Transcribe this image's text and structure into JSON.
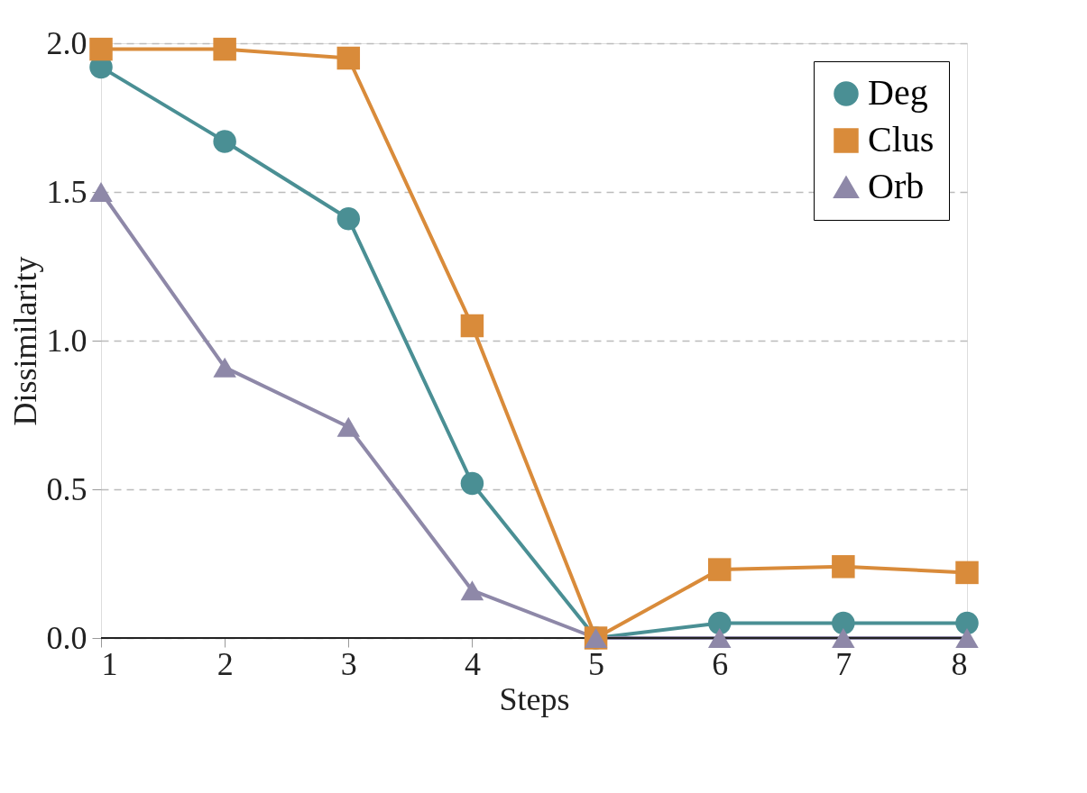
{
  "chart_data": {
    "type": "line",
    "xlabel": "Steps",
    "ylabel": "Dissimilarity",
    "x": [
      1,
      2,
      3,
      4,
      5,
      6,
      7,
      8
    ],
    "series": [
      {
        "name": "Deg",
        "color": "#4a8f94",
        "marker": "circle",
        "values": [
          1.92,
          1.67,
          1.41,
          0.52,
          0.0,
          0.05,
          0.05,
          0.05
        ]
      },
      {
        "name": "Clus",
        "color": "#d98b3a",
        "marker": "square",
        "values": [
          1.98,
          1.98,
          1.95,
          1.05,
          0.0,
          0.23,
          0.24,
          0.22
        ]
      },
      {
        "name": "Orb",
        "color": "#8e88a8",
        "marker": "triangle",
        "values": [
          1.5,
          0.91,
          0.71,
          0.16,
          0.0,
          0.0,
          0.0,
          0.0
        ]
      }
    ],
    "xlim": [
      1,
      8
    ],
    "xticks": [
      1,
      2,
      3,
      4,
      5,
      6,
      7,
      8
    ],
    "ylim": [
      0,
      2.0
    ],
    "yticks": [
      {
        "value": 0,
        "label": "0.0"
      },
      {
        "value": 0.5,
        "label": "0.5"
      },
      {
        "value": 1.0,
        "label": "1.0"
      },
      {
        "value": 1.5,
        "label": "1.5"
      },
      {
        "value": 2.0,
        "label": "2.0"
      }
    ],
    "grid": "y",
    "legend": "top right",
    "line_style": "solid"
  }
}
